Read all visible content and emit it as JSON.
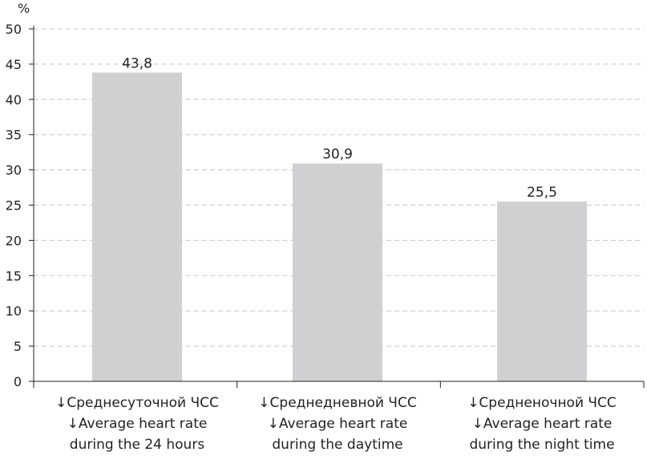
{
  "chart_data": {
    "type": "bar",
    "ylabel": "%",
    "ylim": [
      0,
      50
    ],
    "yticks": [
      0,
      5,
      10,
      15,
      20,
      25,
      30,
      35,
      40,
      45,
      50
    ],
    "grid": true,
    "categories": [
      {
        "lines": [
          "↓Среднесуточной ЧСС",
          "↓Average heart rate",
          "during the 24 hours"
        ]
      },
      {
        "lines": [
          "↓Среднедневной ЧСС",
          "↓Average heart rate",
          "during the daytime"
        ]
      },
      {
        "lines": [
          "↓Средненочной ЧСС",
          "↓Average heart rate",
          "during the night time"
        ]
      }
    ],
    "values": [
      43.8,
      30.9,
      25.5
    ],
    "value_labels": [
      "43,8",
      "30,9",
      "25,5"
    ],
    "colors": {
      "bar": "#d0d0d2",
      "axis": "#222222",
      "grid": "#c8c8c8"
    }
  }
}
